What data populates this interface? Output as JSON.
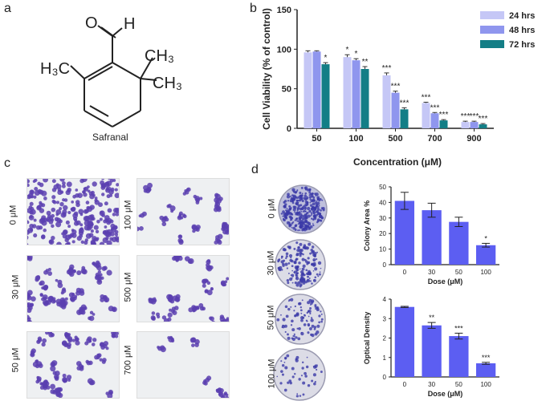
{
  "panels": {
    "a": "a",
    "b": "b",
    "c": "c",
    "d": "d"
  },
  "molecule": {
    "label": "Safranal",
    "groups": {
      "aldehyde_o": "O",
      "aldehyde_h": "H",
      "h3c": "H₃C",
      "ch3_top": "CH₃",
      "ch3_bottom": "CH₃"
    }
  },
  "colors": {
    "h24": "#c5c7f6",
    "h48": "#8f96ee",
    "h72": "#137e86",
    "bar_d": "#5c5ef2",
    "cell_stain": "#5a3fb0"
  },
  "micrographs": {
    "left": [
      "0 μM",
      "30 μM",
      "50 μM"
    ],
    "right": [
      "100 μM",
      "500 μM",
      "700 μM"
    ]
  },
  "dishes": [
    "0 μM",
    "30 μM",
    "50 μM",
    "100 μM"
  ],
  "chart_data": [
    {
      "type": "bar",
      "ylabel": "Cell Viability (% of control)",
      "xlabel": "Concentration (μM)",
      "ylim": [
        0,
        150
      ],
      "yticks": [
        0,
        50,
        100,
        150
      ],
      "categories": [
        "50",
        "100",
        "500",
        "700",
        "900"
      ],
      "legend_position": "top-right",
      "series": [
        {
          "name": "24 hrs",
          "color": "#c5c7f6",
          "values": [
            96,
            90,
            67,
            32,
            8
          ],
          "errors": [
            2,
            3,
            3,
            1,
            1
          ],
          "sig": [
            "",
            "*",
            "***",
            "***",
            "***"
          ]
        },
        {
          "name": "48 hrs",
          "color": "#8f96ee",
          "values": [
            97,
            86,
            45,
            19,
            8
          ],
          "errors": [
            1,
            2,
            2,
            1,
            1
          ],
          "sig": [
            "",
            "*",
            "***",
            "***",
            "***"
          ]
        },
        {
          "name": "72 hrs",
          "color": "#137e86",
          "values": [
            81,
            75,
            24,
            10,
            5
          ],
          "errors": [
            2,
            3,
            2,
            1,
            1
          ],
          "sig": [
            "*",
            "**",
            "***",
            "***",
            "***"
          ]
        }
      ]
    },
    {
      "type": "bar",
      "ylabel": "Colony Area %",
      "xlabel": "Dose (μM)",
      "ylim": [
        0,
        50
      ],
      "yticks": [
        0,
        10,
        20,
        30,
        40,
        50
      ],
      "categories": [
        "0",
        "30",
        "50",
        "100"
      ],
      "values": [
        41,
        35,
        27.5,
        12.5
      ],
      "errors": [
        5.5,
        4.5,
        3,
        1.2
      ],
      "sig": [
        "",
        "",
        "",
        "*"
      ]
    },
    {
      "type": "bar",
      "ylabel": "Optical Density",
      "xlabel": "Dose (μM)",
      "ylim": [
        0,
        4
      ],
      "yticks": [
        0,
        1,
        2,
        3,
        4
      ],
      "categories": [
        "0",
        "30",
        "50",
        "100"
      ],
      "values": [
        3.6,
        2.65,
        2.1,
        0.7
      ],
      "errors": [
        0.03,
        0.15,
        0.15,
        0.05
      ],
      "sig": [
        "",
        "**",
        "***",
        "***"
      ]
    }
  ]
}
